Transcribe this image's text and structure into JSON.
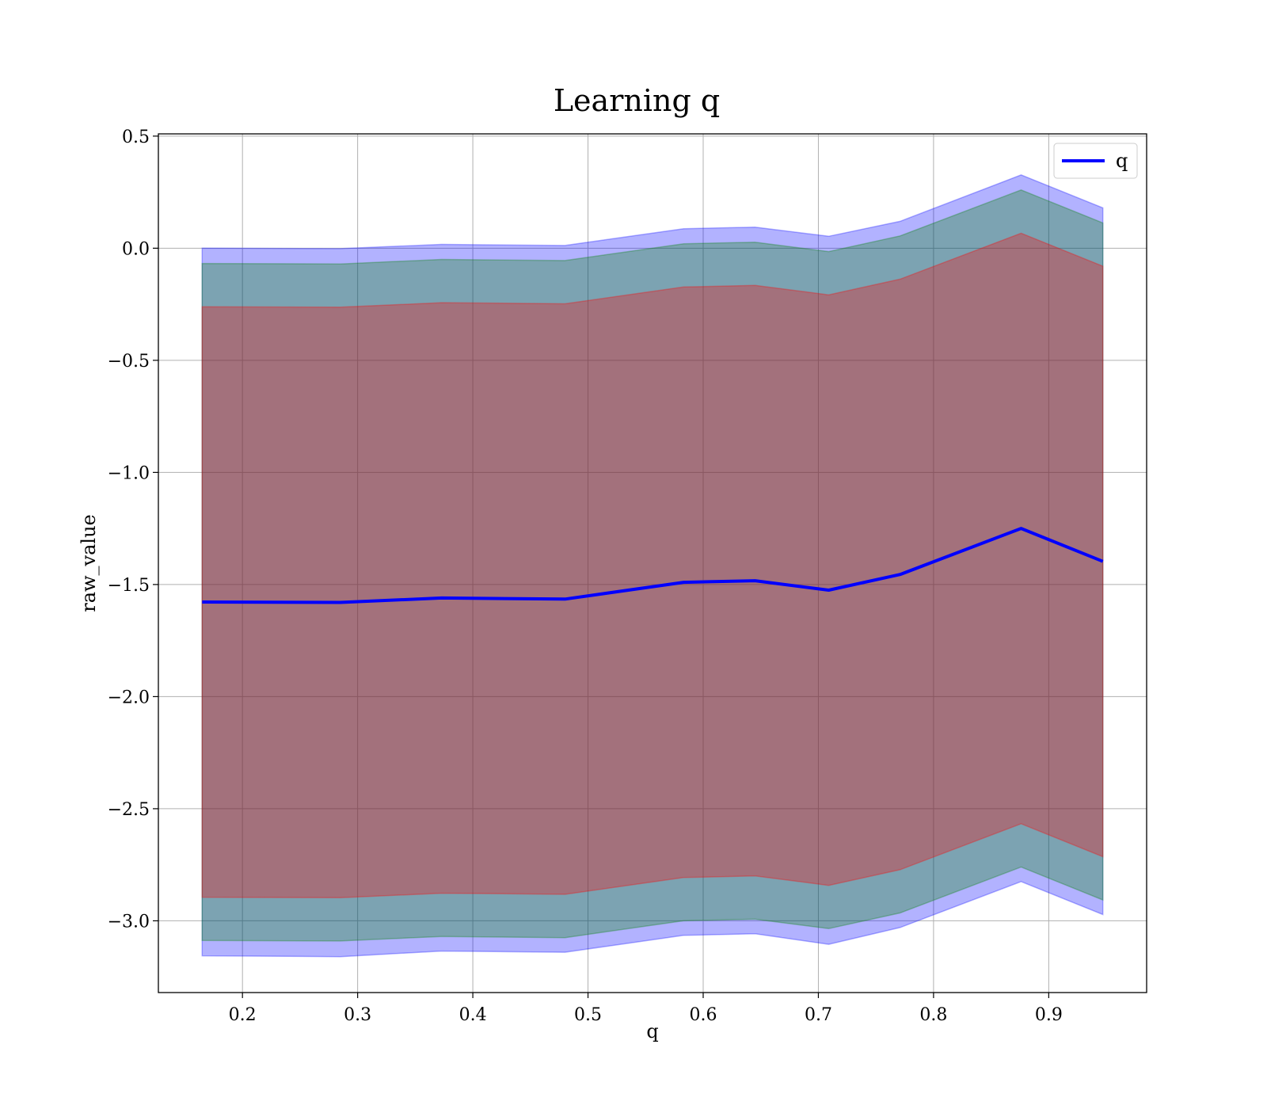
{
  "chart_data": {
    "type": "line",
    "title": "Learning q",
    "xlabel": "q",
    "ylabel": "raw_value",
    "xlim": [
      0.127,
      0.985
    ],
    "ylim": [
      -3.32,
      0.51
    ],
    "xticks": [
      0.2,
      0.3,
      0.4,
      0.5,
      0.6,
      0.7,
      0.8,
      0.9
    ],
    "xtick_labels": [
      "0.2",
      "0.3",
      "0.4",
      "0.5",
      "0.6",
      "0.7",
      "0.8",
      "0.9"
    ],
    "yticks": [
      0.5,
      0.0,
      -0.5,
      -1.0,
      -1.5,
      -2.0,
      -2.5,
      -3.0
    ],
    "ytick_labels": [
      "0.5",
      "0.0",
      "−0.5",
      "−1.0",
      "−1.5",
      "−2.0",
      "−2.5",
      "−3.0"
    ],
    "grid": true,
    "legend_position": "top-right",
    "x": [
      0.165,
      0.285,
      0.373,
      0.48,
      0.583,
      0.645,
      0.709,
      0.771,
      0.876,
      0.947
    ],
    "series": [
      {
        "name": "q",
        "color": "#0000ff",
        "values": [
          -1.578,
          -1.58,
          -1.56,
          -1.565,
          -1.49,
          -1.483,
          -1.525,
          -1.455,
          -1.25,
          -1.397
        ]
      }
    ],
    "bands": [
      {
        "color": "#0000ff",
        "opacity": 0.3,
        "lower": [
          -3.156,
          -3.16,
          -3.135,
          -3.14,
          -3.065,
          -3.058,
          -3.105,
          -3.03,
          -2.825,
          -2.972
        ],
        "upper": [
          0.0,
          -0.002,
          0.017,
          0.012,
          0.087,
          0.094,
          0.053,
          0.12,
          0.327,
          0.18
        ]
      },
      {
        "color": "#008000",
        "opacity": 0.3,
        "lower": [
          -3.088,
          -3.09,
          -3.07,
          -3.075,
          -3.0,
          -2.993,
          -3.035,
          -2.965,
          -2.76,
          -2.907
        ],
        "upper": [
          -0.068,
          -0.07,
          -0.05,
          -0.055,
          0.02,
          0.027,
          -0.015,
          0.055,
          0.26,
          0.113
        ]
      },
      {
        "color": "#ff0000",
        "opacity": 0.3,
        "lower": [
          -2.895,
          -2.897,
          -2.877,
          -2.882,
          -2.807,
          -2.8,
          -2.842,
          -2.772,
          -2.567,
          -2.714
        ],
        "upper": [
          -0.261,
          -0.263,
          -0.243,
          -0.248,
          -0.173,
          -0.166,
          -0.208,
          -0.138,
          0.067,
          -0.08
        ]
      }
    ]
  }
}
